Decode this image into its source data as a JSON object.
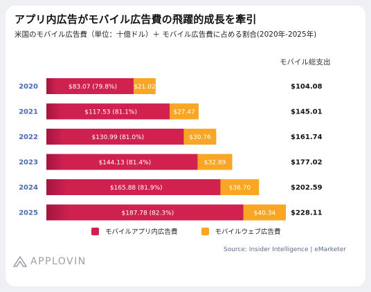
{
  "header": {
    "title": "アプリ内広告がモバイル広告費の飛躍的成長を牽引",
    "subtitle": "米国のモバイル広告費（単位：十億ドル）＋ モバイル広告費に占める割合(2020年-2025年)",
    "total_column_label": "モバイル総支出"
  },
  "chart_data": {
    "type": "bar",
    "orientation": "horizontal",
    "stacked": true,
    "categories": [
      "2020",
      "2021",
      "2022",
      "2023",
      "2024",
      "2025"
    ],
    "series": [
      {
        "name": "モバイルアプリ内広告費",
        "values": [
          83.07,
          117.53,
          130.99,
          144.13,
          165.88,
          187.78
        ],
        "labels": [
          "$83.07",
          "$117.53",
          "$130.99",
          "$144.13",
          "$165.88",
          "$187.78"
        ],
        "percent_labels": [
          "(79.8%)",
          "(81.1%)",
          "(81.0%)",
          "(81.4%)",
          "(81.9%)",
          "(82.3%)"
        ],
        "color": "#d0214f"
      },
      {
        "name": "モバイルウェブ広告費",
        "values": [
          21.02,
          27.47,
          30.76,
          32.89,
          36.7,
          40.34
        ],
        "labels": [
          "$21.02",
          "$27.47",
          "$30.76",
          "$32.89",
          "$36.70",
          "$40.34"
        ],
        "color": "#f8a623"
      }
    ],
    "totals": [
      "$104.08",
      "$145.01",
      "$161.74",
      "$177.02",
      "$202.59",
      "$228.11"
    ],
    "xlim": [
      0,
      228.11
    ],
    "grid": false,
    "legend_position": "bottom-center"
  },
  "footer": {
    "source": "Source: Insider Intelligence | eMarketer",
    "logo_text": "APPLOVIN",
    "logo_icon": "applovin-logo-icon"
  },
  "colors": {
    "year_label": "#4a6ab0",
    "accent_red": "#d0214f",
    "accent_orange": "#f8a623"
  }
}
